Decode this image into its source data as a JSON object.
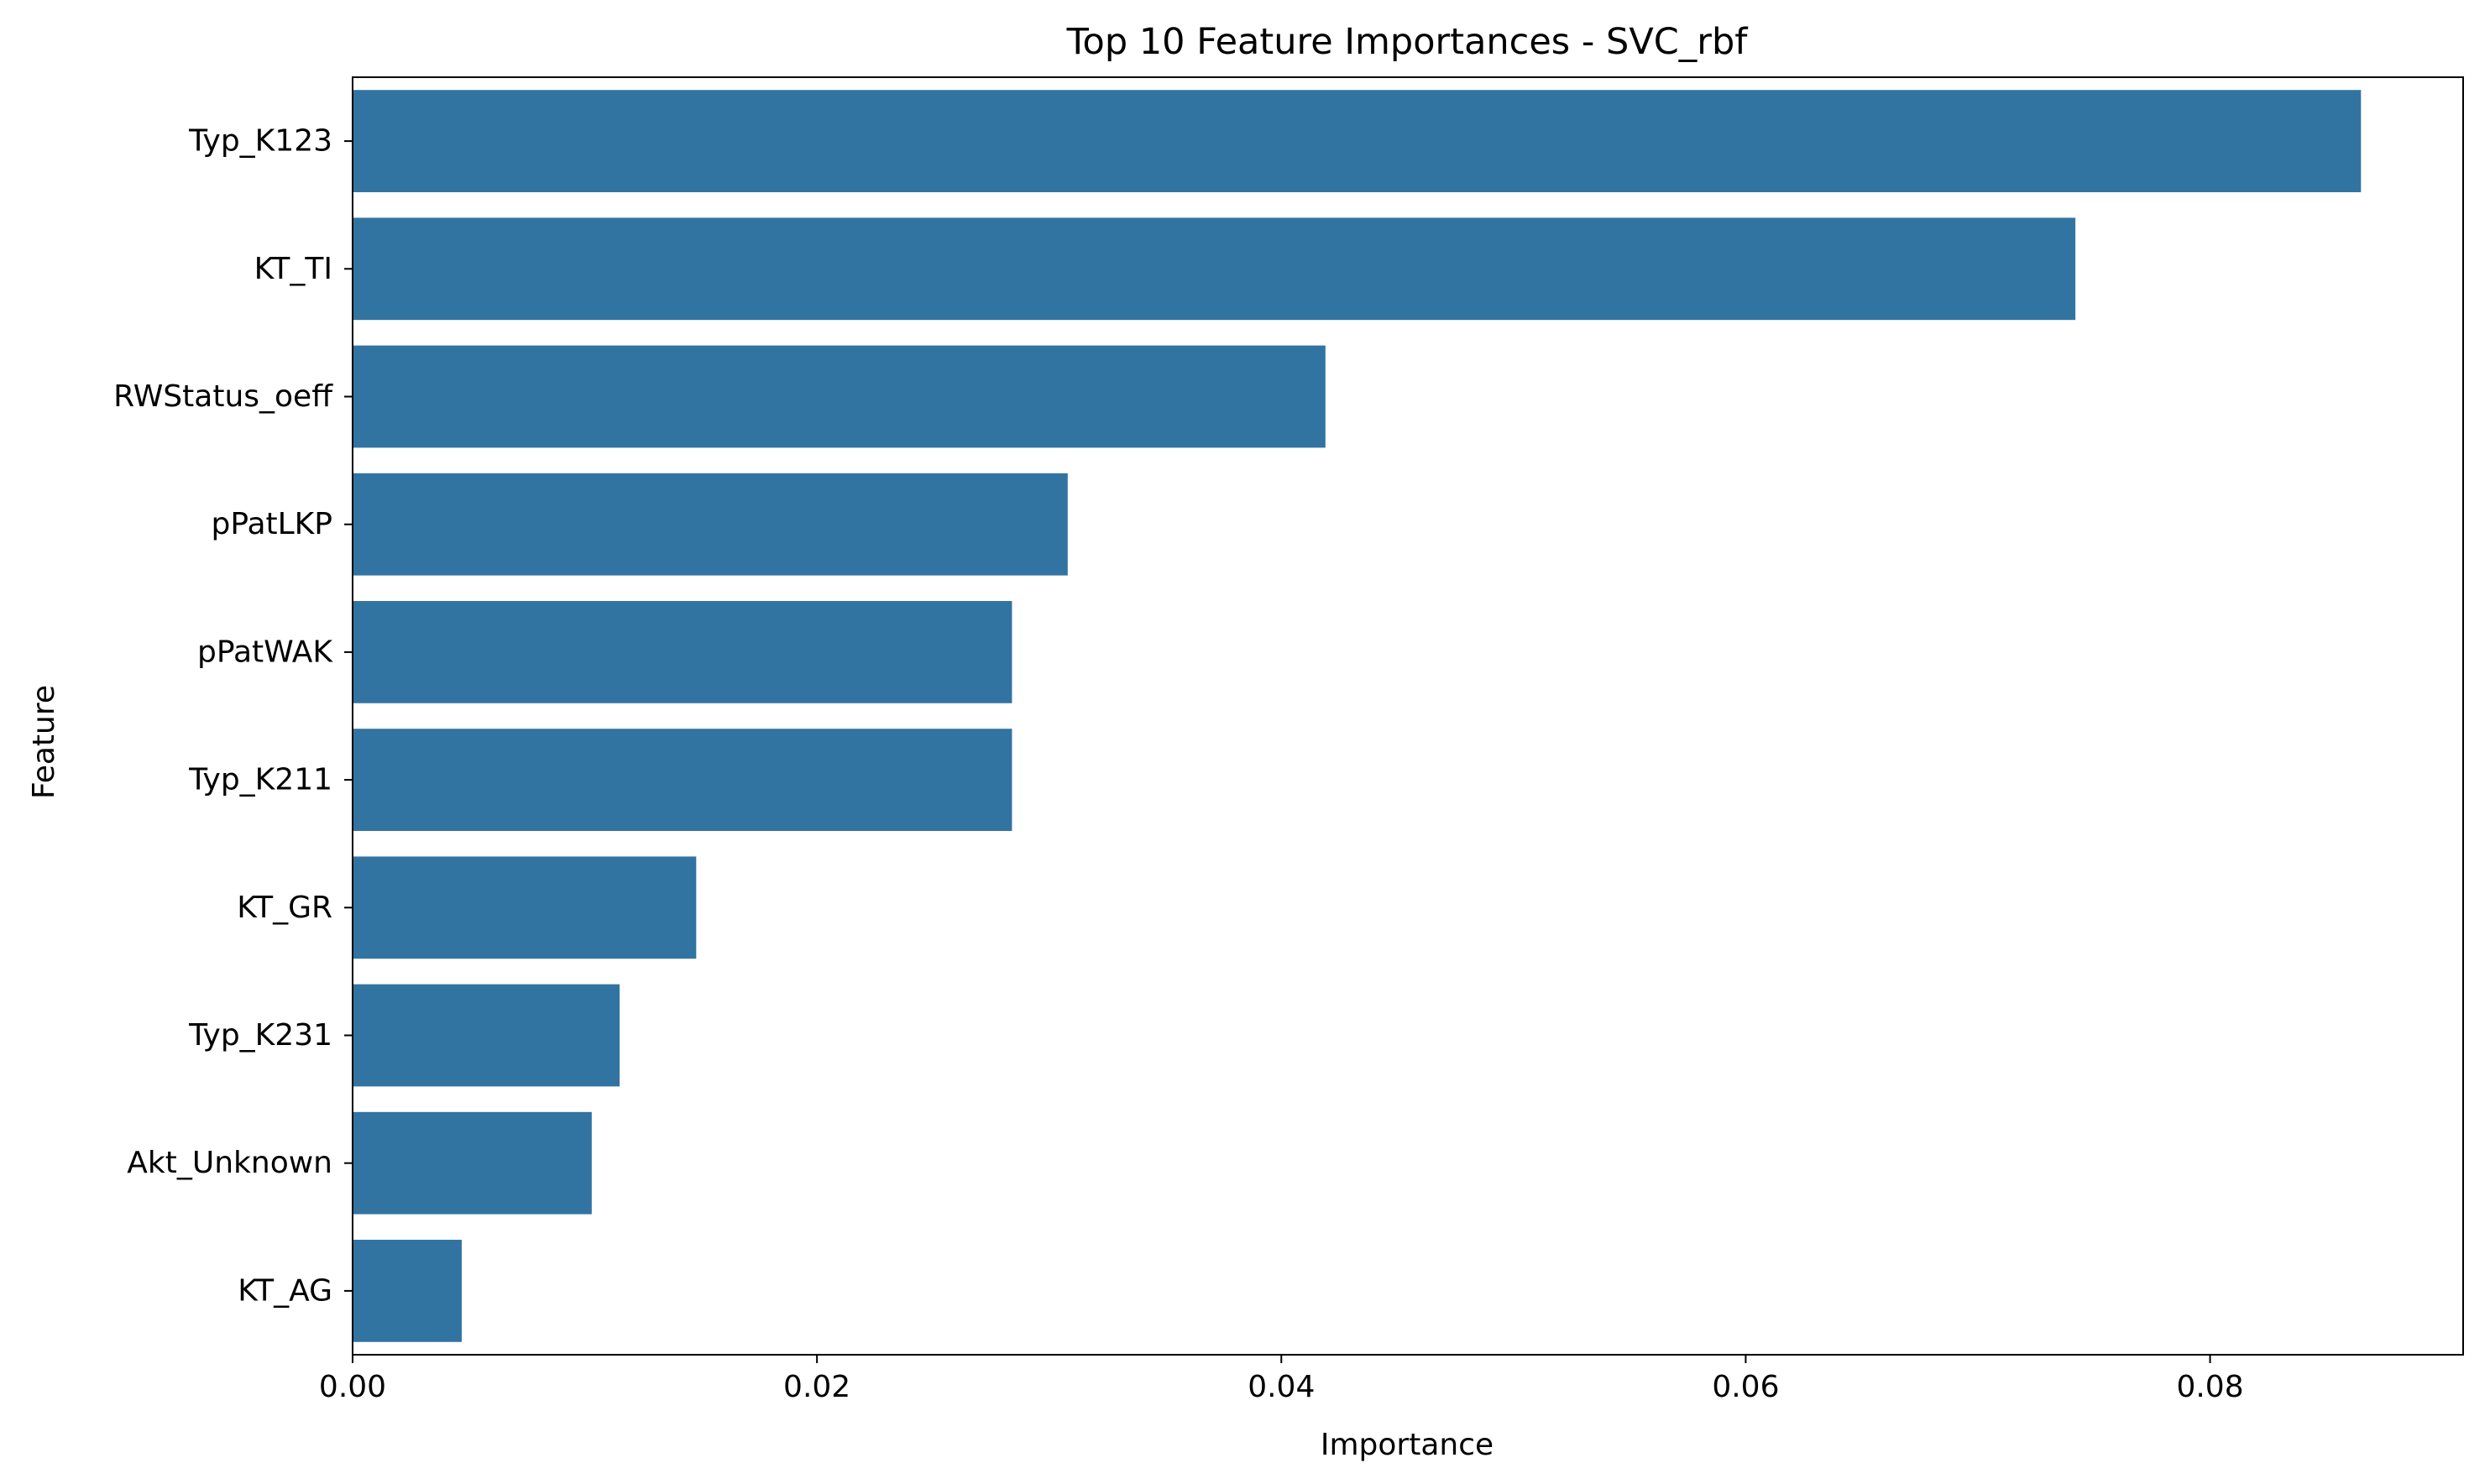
{
  "chart_data": {
    "type": "bar",
    "orientation": "horizontal",
    "title": "Top 10 Feature Importances - SVC_rbf",
    "xlabel": "Importance",
    "ylabel": "Feature",
    "xlim": [
      0,
      0.0909
    ],
    "x_ticks": [
      0.0,
      0.02,
      0.04,
      0.06,
      0.08
    ],
    "x_tick_labels": [
      "0.00",
      "0.02",
      "0.04",
      "0.06",
      "0.08"
    ],
    "grid": false,
    "bar_color": "#3274a1",
    "categories": [
      "Typ_K123",
      "KT_TI",
      "RWStatus_oeff",
      "pPatLKP",
      "pPatWAK",
      "Typ_K211",
      "KT_GR",
      "Typ_K231",
      "Akt_Unknown",
      "KT_AG"
    ],
    "values": [
      0.0865,
      0.0742,
      0.0419,
      0.0308,
      0.0284,
      0.0284,
      0.0148,
      0.0115,
      0.0103,
      0.0047
    ]
  }
}
